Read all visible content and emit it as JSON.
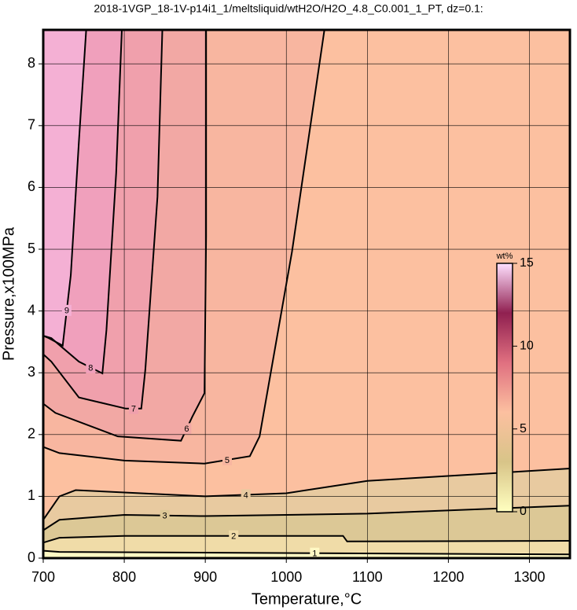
{
  "chart_data": {
    "type": "contour",
    "title": "2018-1VGP_18-1V-p14i1_1/meltsliquid/wtH2O/H2O_4.8_C0.001_1_PT, dz=0.1:",
    "x_label": "Temperature,°C",
    "y_label": "Pressure,x100MPa",
    "xlim": [
      700,
      1350
    ],
    "ylim": [
      0,
      8.55
    ],
    "xticks": [
      700,
      800,
      900,
      1000,
      1100,
      1200,
      1300
    ],
    "yticks": [
      0,
      1,
      2,
      3,
      4,
      5,
      6,
      7,
      8
    ],
    "grid": true,
    "background": "#fcc0a0",
    "contours": [
      {
        "level": 4,
        "color": "#e8caa0",
        "x": [
          700,
          720,
          740,
          900,
          1000,
          1100,
          1350
        ],
        "y": [
          0.62,
          1.0,
          1.1,
          1.0,
          1.05,
          1.25,
          1.45
        ]
      },
      {
        "level": 3,
        "color": "#dcc896",
        "x": [
          700,
          720,
          800,
          900,
          1100,
          1350
        ],
        "y": [
          0.45,
          0.62,
          0.7,
          0.68,
          0.72,
          0.85
        ]
      },
      {
        "level": 2,
        "color": "#f0dca8",
        "x": [
          700,
          720,
          800,
          1070,
          1075,
          1350
        ],
        "y": [
          0.25,
          0.33,
          0.36,
          0.36,
          0.27,
          0.28
        ]
      },
      {
        "level": 1,
        "color": "#fff8c4",
        "x": [
          700,
          720,
          1350
        ],
        "y": [
          0.12,
          0.1,
          0.06
        ]
      },
      {
        "level": 5,
        "color": "#f8b6a0",
        "x": [
          1047,
          1007,
          967,
          955,
          899,
          800,
          720,
          700
        ],
        "y": [
          8.55,
          4.96,
          1.97,
          1.65,
          1.53,
          1.58,
          1.7,
          1.8
        ]
      },
      {
        "level": 6,
        "color": "#f2a8a4",
        "x": [
          901,
          901,
          899,
          884,
          870,
          792,
          715,
          700
        ],
        "y": [
          8.55,
          5.2,
          2.67,
          2.29,
          1.9,
          1.97,
          2.35,
          2.5
        ]
      },
      {
        "level": 7,
        "color": "#f0a0ac",
        "x": [
          847,
          841,
          826,
          821,
          802,
          744,
          710,
          700
        ],
        "y": [
          8.55,
          5.85,
          3.05,
          2.42,
          2.42,
          2.6,
          3.18,
          3.3
        ]
      },
      {
        "level": 8,
        "color": "#f0a0bc",
        "x": [
          797,
          790,
          778,
          773,
          744,
          710,
          700
        ],
        "y": [
          8.55,
          6.23,
          3.69,
          2.99,
          3.18,
          3.56,
          3.6
        ]
      },
      {
        "level": 9,
        "color": "#f4b0d4",
        "x": [
          753,
          744,
          734,
          724,
          707,
          700
        ],
        "y": [
          8.55,
          6.74,
          4.58,
          3.44,
          3.56,
          3.6
        ]
      }
    ],
    "colorbar": {
      "label": "wt%",
      "lim": [
        0,
        15
      ],
      "ticks": [
        0,
        5,
        10,
        15
      ],
      "colors": [
        "#ffffc0",
        "#d8c488",
        "#fcc0a0",
        "#e07080",
        "#902050",
        "#ffe0ff"
      ]
    }
  }
}
